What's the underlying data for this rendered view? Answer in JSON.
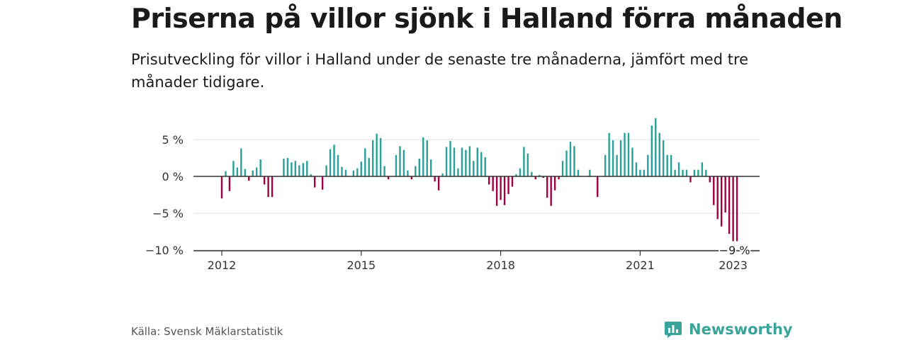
{
  "header": {
    "title": "Priserna på villor sjönk i Halland förra månaden",
    "subtitle": "Prisutveckling för villor i Halland under de senaste tre månaderna, jämfört med tre månader tidigare."
  },
  "footer": {
    "source": "Källa: Svensk Mäklarstatistik",
    "brand_name": "Newsworthy",
    "brand_icon": "bar-chart-speech-bubble-icon"
  },
  "colors": {
    "positive": "#2aa198",
    "negative": "#9e0142",
    "gridline": "#dddddd",
    "zero_line": "#333333",
    "brand": "#3aa39a"
  },
  "chart_data": {
    "type": "bar",
    "title": "",
    "xlabel": "",
    "ylabel": "",
    "ylim": [
      -10,
      8
    ],
    "y_ticks": [
      5,
      0,
      -5,
      -10
    ],
    "y_tick_labels": [
      "5 %",
      "0 %",
      "−5 %",
      "−10 %"
    ],
    "x_ticks": [
      2012,
      2015,
      2018,
      2021,
      2023
    ],
    "x_tick_labels": [
      "2012",
      "2015",
      "2018",
      "2021",
      "2023"
    ],
    "grid": true,
    "legend": "none",
    "annotation": {
      "date": "2023-01",
      "value": -9,
      "text": "−9 %"
    },
    "series": [
      {
        "values": [
          {
            "date": "2012-01",
            "value": -3
          },
          {
            "date": "2012-02",
            "value": 0.7
          },
          {
            "date": "2012-03",
            "value": -2
          },
          {
            "date": "2012-04",
            "value": 2.1
          },
          {
            "date": "2012-05",
            "value": 1.2
          },
          {
            "date": "2012-06",
            "value": 3.8
          },
          {
            "date": "2012-07",
            "value": 1
          },
          {
            "date": "2012-08",
            "value": -0.6
          },
          {
            "date": "2012-09",
            "value": 0.8
          },
          {
            "date": "2012-10",
            "value": 1.2
          },
          {
            "date": "2012-11",
            "value": 2.3
          },
          {
            "date": "2012-12",
            "value": -1.1
          },
          {
            "date": "2013-01",
            "value": -2.8
          },
          {
            "date": "2013-02",
            "value": -2.8
          },
          {
            "date": "2013-05",
            "value": 2.4
          },
          {
            "date": "2013-06",
            "value": 2.5
          },
          {
            "date": "2013-07",
            "value": 1.9
          },
          {
            "date": "2013-08",
            "value": 2.1
          },
          {
            "date": "2013-09",
            "value": 1.5
          },
          {
            "date": "2013-10",
            "value": 1.8
          },
          {
            "date": "2013-11",
            "value": 2.1
          },
          {
            "date": "2013-12",
            "value": 0.3
          },
          {
            "date": "2014-01",
            "value": -1.5
          },
          {
            "date": "2014-03",
            "value": -1.8
          },
          {
            "date": "2014-04",
            "value": 1.5
          },
          {
            "date": "2014-05",
            "value": 3.7
          },
          {
            "date": "2014-06",
            "value": 4.3
          },
          {
            "date": "2014-07",
            "value": 2.9
          },
          {
            "date": "2014-08",
            "value": 1.3
          },
          {
            "date": "2014-09",
            "value": 0.9
          },
          {
            "date": "2014-11",
            "value": 0.8
          },
          {
            "date": "2014-12",
            "value": 1.1
          },
          {
            "date": "2015-01",
            "value": 2
          },
          {
            "date": "2015-02",
            "value": 3.8
          },
          {
            "date": "2015-03",
            "value": 2.5
          },
          {
            "date": "2015-04",
            "value": 4.9
          },
          {
            "date": "2015-05",
            "value": 5.8
          },
          {
            "date": "2015-06",
            "value": 5.2
          },
          {
            "date": "2015-07",
            "value": 1.4
          },
          {
            "date": "2015-08",
            "value": -0.4
          },
          {
            "date": "2015-10",
            "value": 2.9
          },
          {
            "date": "2015-11",
            "value": 4.1
          },
          {
            "date": "2015-12",
            "value": 3.6
          },
          {
            "date": "2016-01",
            "value": 0.8
          },
          {
            "date": "2016-02",
            "value": -0.4
          },
          {
            "date": "2016-03",
            "value": 1.4
          },
          {
            "date": "2016-04",
            "value": 2.4
          },
          {
            "date": "2016-05",
            "value": 5.3
          },
          {
            "date": "2016-06",
            "value": 4.9
          },
          {
            "date": "2016-07",
            "value": 2.3
          },
          {
            "date": "2016-08",
            "value": -0.7
          },
          {
            "date": "2016-09",
            "value": -1.9
          },
          {
            "date": "2016-10",
            "value": 0.4
          },
          {
            "date": "2016-11",
            "value": 4
          },
          {
            "date": "2016-12",
            "value": 4.8
          },
          {
            "date": "2017-01",
            "value": 3.9
          },
          {
            "date": "2017-02",
            "value": 1.1
          },
          {
            "date": "2017-03",
            "value": 3.9
          },
          {
            "date": "2017-04",
            "value": 3.6
          },
          {
            "date": "2017-05",
            "value": 4.1
          },
          {
            "date": "2017-06",
            "value": 2.1
          },
          {
            "date": "2017-07",
            "value": 3.9
          },
          {
            "date": "2017-08",
            "value": 3.3
          },
          {
            "date": "2017-09",
            "value": 2.6
          },
          {
            "date": "2017-10",
            "value": -1.1
          },
          {
            "date": "2017-11",
            "value": -2
          },
          {
            "date": "2017-12",
            "value": -4
          },
          {
            "date": "2018-01",
            "value": -3.2
          },
          {
            "date": "2018-02",
            "value": -3.9
          },
          {
            "date": "2018-03",
            "value": -2.4
          },
          {
            "date": "2018-04",
            "value": -1.4
          },
          {
            "date": "2018-05",
            "value": 0.3
          },
          {
            "date": "2018-06",
            "value": 1.1
          },
          {
            "date": "2018-07",
            "value": 4
          },
          {
            "date": "2018-08",
            "value": 3.1
          },
          {
            "date": "2018-09",
            "value": 0.6
          },
          {
            "date": "2018-10",
            "value": -0.4
          },
          {
            "date": "2018-11",
            "value": 0.2
          },
          {
            "date": "2018-12",
            "value": -0.2
          },
          {
            "date": "2019-01",
            "value": -2.9
          },
          {
            "date": "2019-02",
            "value": -4
          },
          {
            "date": "2019-03",
            "value": -1.9
          },
          {
            "date": "2019-04",
            "value": -0.4
          },
          {
            "date": "2019-05",
            "value": 2.1
          },
          {
            "date": "2019-06",
            "value": 3.5
          },
          {
            "date": "2019-07",
            "value": 4.7
          },
          {
            "date": "2019-08",
            "value": 4.1
          },
          {
            "date": "2019-09",
            "value": 0.9
          },
          {
            "date": "2019-12",
            "value": 0.9
          },
          {
            "date": "2020-02",
            "value": -2.8
          },
          {
            "date": "2020-04",
            "value": 2.9
          },
          {
            "date": "2020-05",
            "value": 5.9
          },
          {
            "date": "2020-06",
            "value": 4.9
          },
          {
            "date": "2020-07",
            "value": 2.9
          },
          {
            "date": "2020-08",
            "value": 4.9
          },
          {
            "date": "2020-09",
            "value": 5.9
          },
          {
            "date": "2020-10",
            "value": 5.9
          },
          {
            "date": "2020-11",
            "value": 3.9
          },
          {
            "date": "2020-12",
            "value": 1.9
          },
          {
            "date": "2021-01",
            "value": 0.9
          },
          {
            "date": "2021-02",
            "value": 0.9
          },
          {
            "date": "2021-03",
            "value": 2.9
          },
          {
            "date": "2021-04",
            "value": 6.9
          },
          {
            "date": "2021-05",
            "value": 7.9
          },
          {
            "date": "2021-06",
            "value": 5.9
          },
          {
            "date": "2021-07",
            "value": 4.9
          },
          {
            "date": "2021-08",
            "value": 2.9
          },
          {
            "date": "2021-09",
            "value": 2.9
          },
          {
            "date": "2021-10",
            "value": 0.9
          },
          {
            "date": "2021-11",
            "value": 1.9
          },
          {
            "date": "2021-12",
            "value": 0.9
          },
          {
            "date": "2022-01",
            "value": 0.9
          },
          {
            "date": "2022-02",
            "value": -0.8
          },
          {
            "date": "2022-03",
            "value": 0.9
          },
          {
            "date": "2022-04",
            "value": 0.9
          },
          {
            "date": "2022-05",
            "value": 1.9
          },
          {
            "date": "2022-06",
            "value": 0.9
          },
          {
            "date": "2022-07",
            "value": -0.8
          },
          {
            "date": "2022-08",
            "value": -3.9
          },
          {
            "date": "2022-09",
            "value": -5.8
          },
          {
            "date": "2022-10",
            "value": -6.8
          },
          {
            "date": "2022-11",
            "value": -4.9
          },
          {
            "date": "2022-12",
            "value": -7.8
          },
          {
            "date": "2023-01",
            "value": -8.8
          },
          {
            "date": "2023-02",
            "value": -8.8
          }
        ]
      }
    ]
  }
}
